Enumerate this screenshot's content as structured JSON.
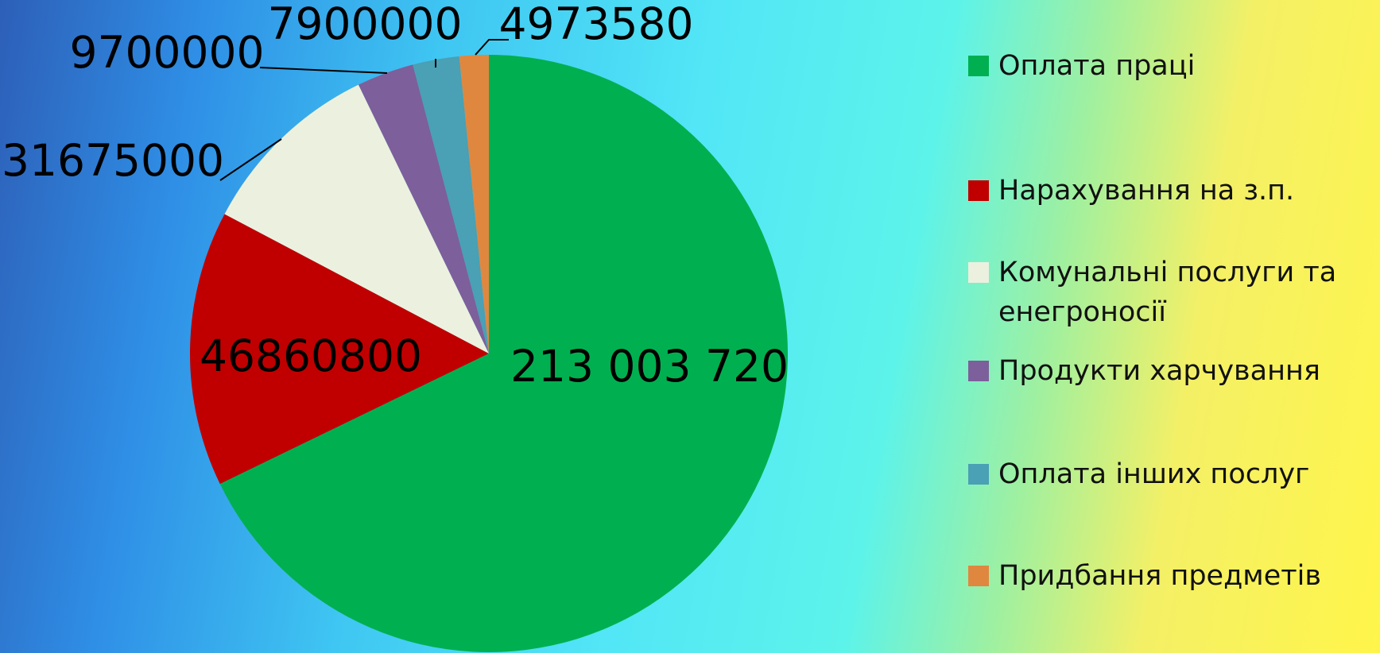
{
  "chart_data": {
    "type": "pie",
    "categories": [
      "Оплата праці",
      "Нарахування на з.п.",
      "Комунальні послуги та енегроносії",
      "Продукти харчування",
      "Оплата інших послуг",
      "Придбання предметів"
    ],
    "values": [
      213003720,
      46860800,
      31675000,
      9700000,
      7900000,
      4973580
    ],
    "value_labels": [
      "213 003 720",
      "46860800",
      "31675000",
      "9700000",
      "7900000",
      "4973580"
    ],
    "colors": [
      "#00b050",
      "#c00000",
      "#ebf1de",
      "#7d5f9b",
      "#4aa0b4",
      "#e0873f"
    ],
    "legend": "right"
  }
}
